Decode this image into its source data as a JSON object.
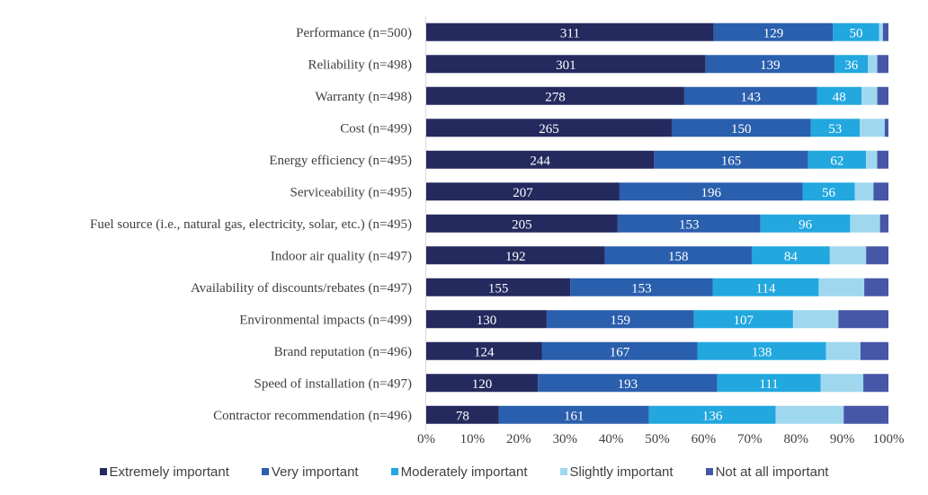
{
  "chart_data": {
    "type": "bar",
    "orientation": "horizontal",
    "stacked": "percent",
    "title": "",
    "xlabel": "",
    "ylabel": "",
    "xlim": [
      0,
      100
    ],
    "x_ticks": [
      "0%",
      "10%",
      "20%",
      "30%",
      "40%",
      "50%",
      "60%",
      "70%",
      "80%",
      "90%",
      "100%"
    ],
    "grid": false,
    "legend_position": "bottom",
    "categories": [
      "Performance (n=500)",
      "Reliability (n=498)",
      "Warranty (n=498)",
      "Cost (n=499)",
      "Energy efficiency  (n=495)",
      "Serviceability (n=495)",
      "Fuel source (i.e., natural gas, electricity, solar, etc.) (n=495)",
      "Indoor air quality  (n=497)",
      "Availability of discounts/rebates  (n=497)",
      "Environmental impacts (n=499)",
      "Brand reputation (n=496)",
      "Speed of installation (n=497)",
      "Contractor recommendation (n=496)"
    ],
    "series": [
      {
        "name": "Extremely important",
        "color": "#242a5e",
        "show_labels": true,
        "values": [
          311,
          301,
          278,
          265,
          244,
          207,
          205,
          192,
          155,
          130,
          124,
          120,
          78
        ]
      },
      {
        "name": "Very important",
        "color": "#2a5fad",
        "show_labels": true,
        "values": [
          129,
          139,
          143,
          150,
          165,
          196,
          153,
          158,
          153,
          159,
          167,
          193,
          161
        ]
      },
      {
        "name": "Moderately important",
        "color": "#22a7df",
        "show_labels": true,
        "values": [
          50,
          36,
          48,
          53,
          62,
          56,
          96,
          84,
          114,
          107,
          138,
          111,
          136
        ]
      },
      {
        "name": "Slightly important",
        "color": "#9fd8ee",
        "show_labels": false,
        "values": [
          4,
          10,
          17,
          27,
          12,
          20,
          32,
          39,
          49,
          49,
          37,
          46,
          73
        ]
      },
      {
        "name": "Not at all important",
        "color": "#4657a8",
        "show_labels": false,
        "values": [
          6,
          12,
          12,
          4,
          12,
          16,
          9,
          24,
          26,
          54,
          30,
          27,
          48
        ]
      }
    ]
  }
}
